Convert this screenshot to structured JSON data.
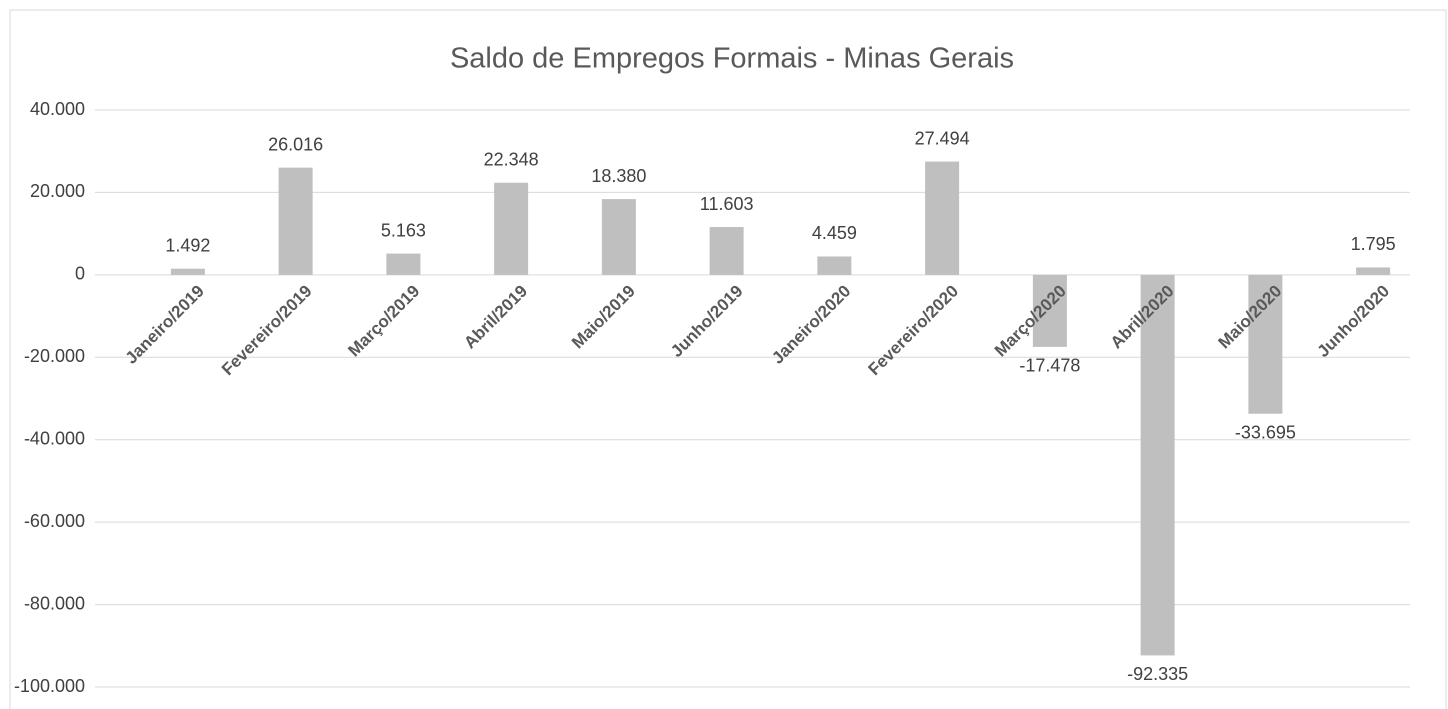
{
  "chart_data": {
    "type": "bar",
    "title": "Saldo de Empregos Formais - Minas Gerais",
    "categories": [
      "Janeiro/2019",
      "Fevereiro/2019",
      "Março/2019",
      "Abril/2019",
      "Maio/2019",
      "Junho/2019",
      "Janeiro/2020",
      "Fevereiro/2020",
      "Março/2020",
      "Abril/2020",
      "Maio/2020",
      "Junho/2020"
    ],
    "values": [
      1492,
      26016,
      5163,
      22348,
      18380,
      11603,
      4459,
      27494,
      -17478,
      -92335,
      -33695,
      1795
    ],
    "value_labels": [
      "1.492",
      "26.016",
      "5.163",
      "22.348",
      "18.380",
      "11.603",
      "4.459",
      "27.494",
      "-17.478",
      "-92.335",
      "-33.695",
      "1.795"
    ],
    "color": "#bfbfbf",
    "ylim": [
      -100000,
      40000
    ],
    "yticks": [
      {
        "value": -100000,
        "label": "-100.000"
      },
      {
        "value": -80000,
        "label": "-80.000"
      },
      {
        "value": -60000,
        "label": "-60.000"
      },
      {
        "value": -40000,
        "label": "-40.000"
      },
      {
        "value": -20000,
        "label": "-20.000"
      },
      0,
      {
        "value": 20000,
        "label": "20.000"
      },
      {
        "value": 40000,
        "label": "40.000"
      }
    ],
    "grid": true
  }
}
